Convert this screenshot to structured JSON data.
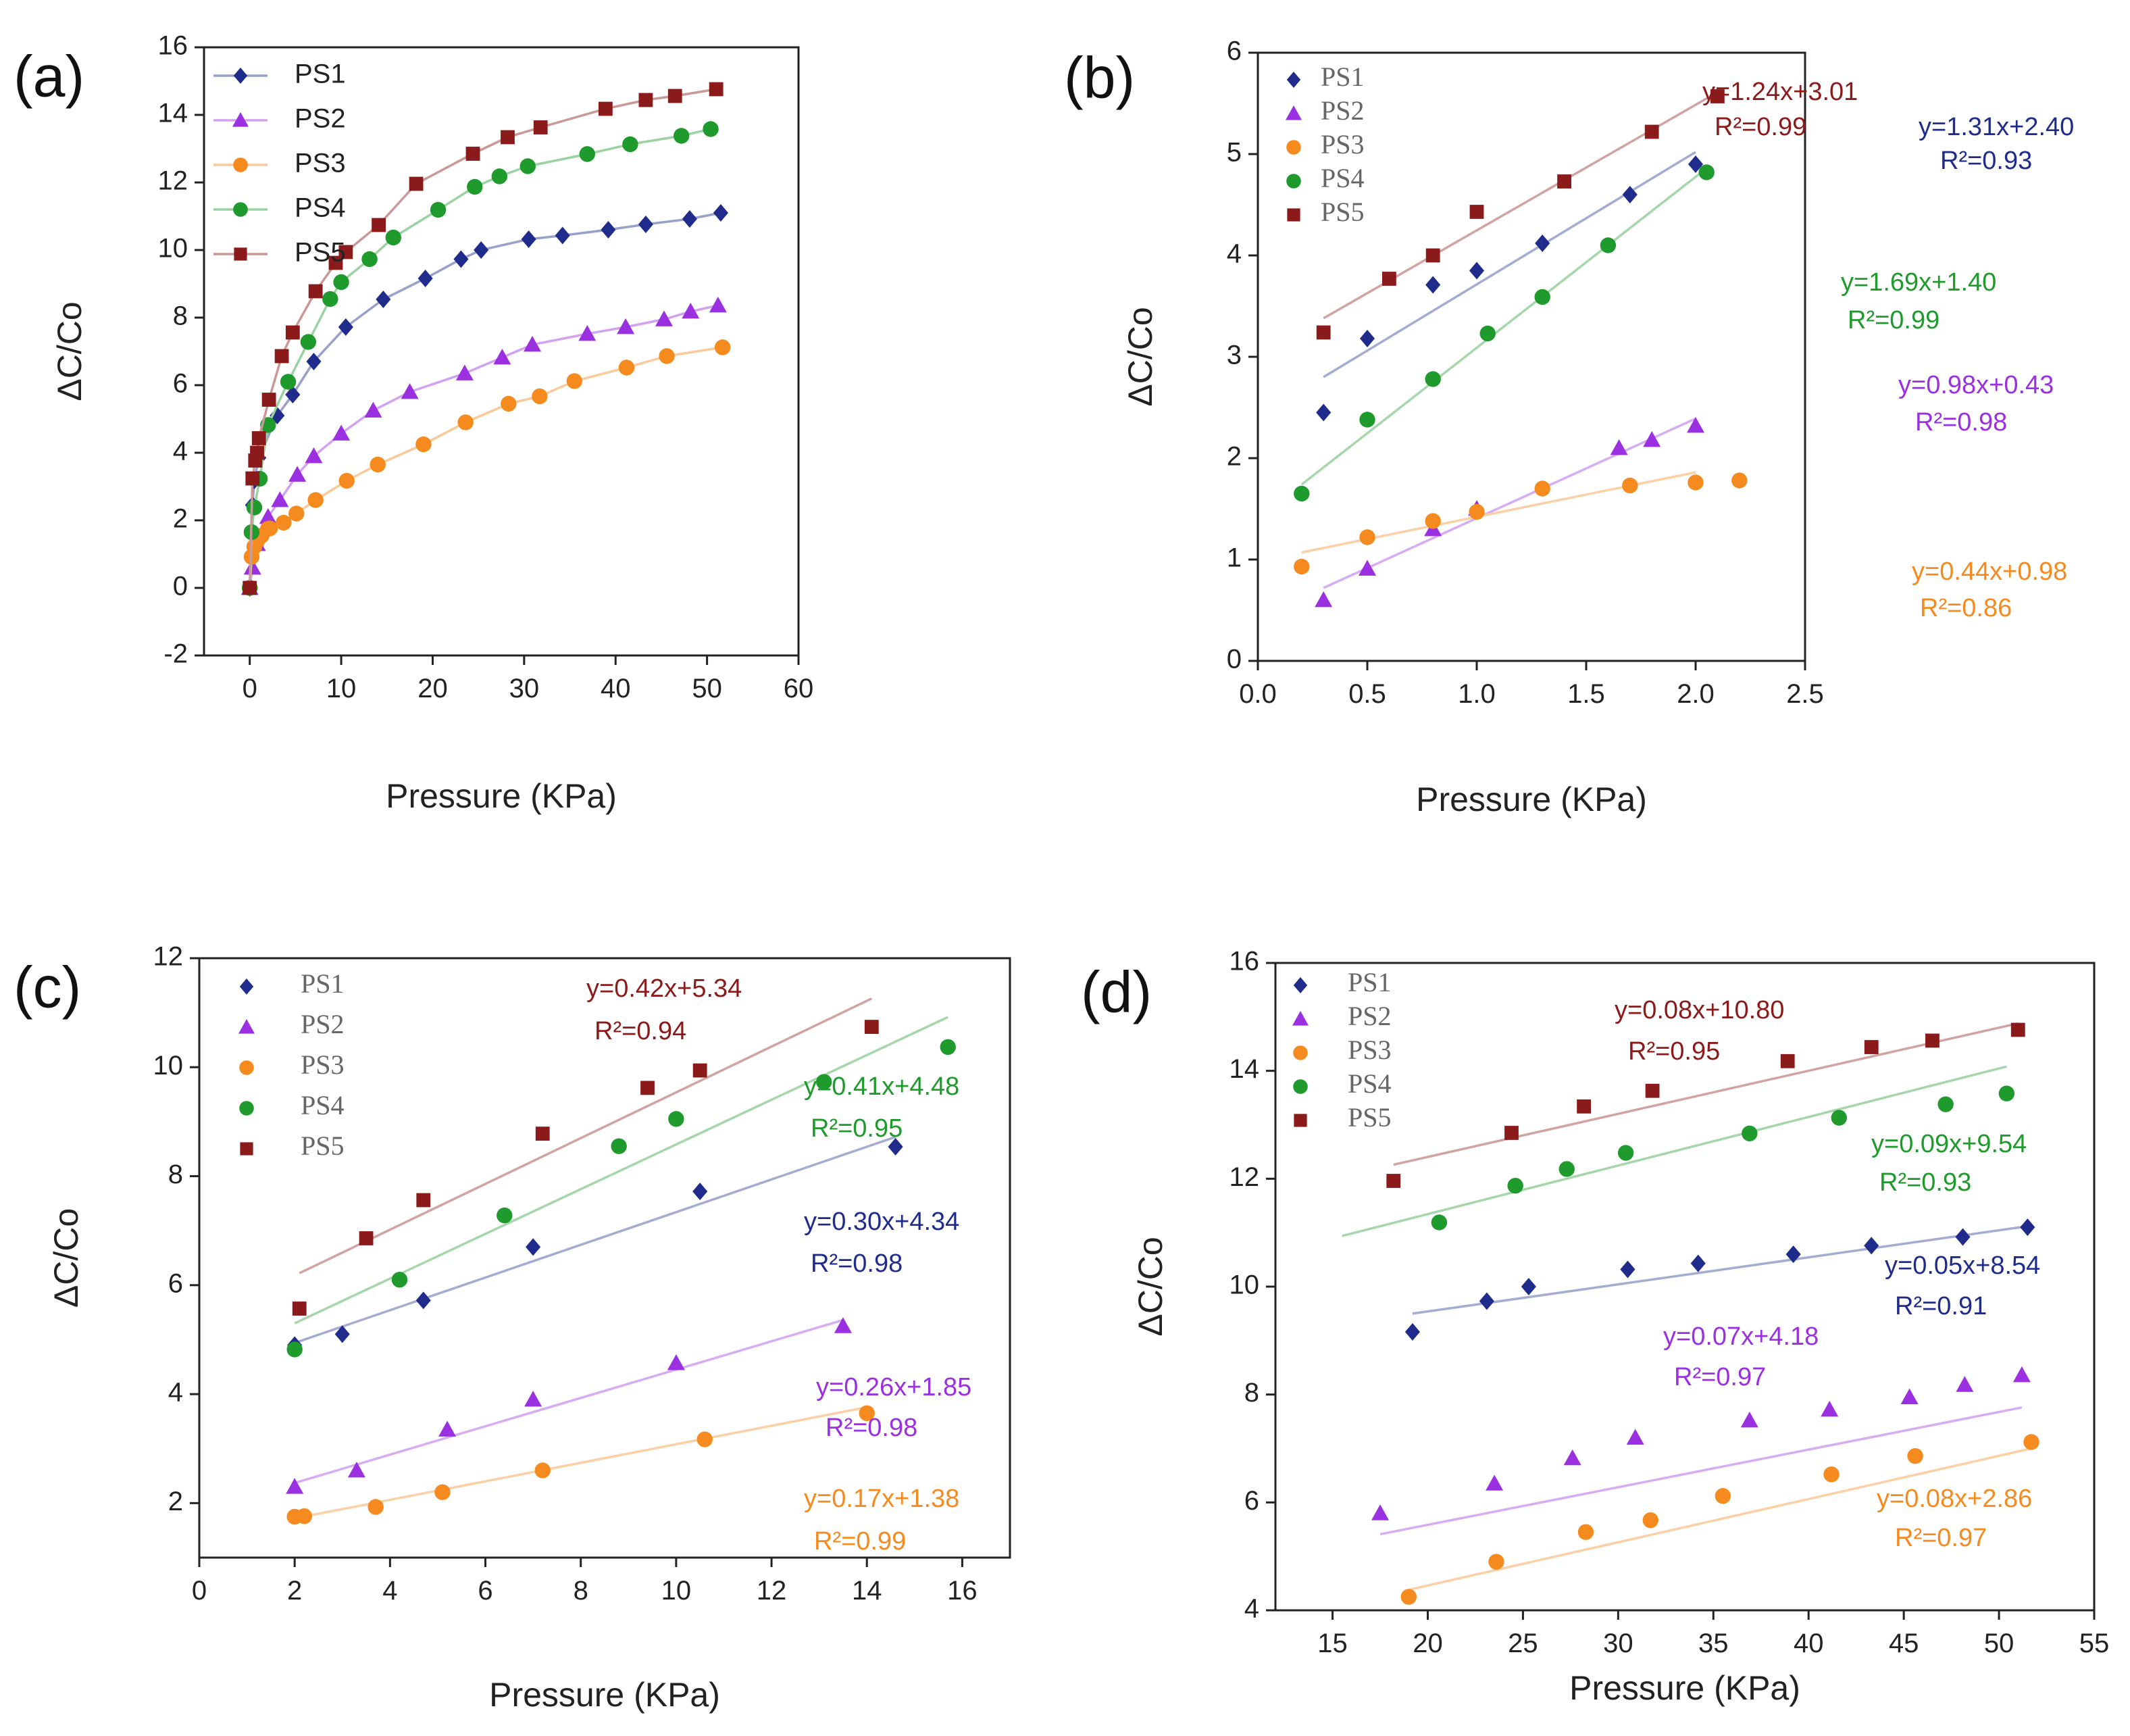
{
  "chart_data": [
    {
      "panel": "(a)",
      "type": "line",
      "xlabel": "Pressure (KPa)",
      "ylabel": "ΔC/Co",
      "xlim": [
        -5,
        60
      ],
      "ylim": [
        -2,
        16
      ],
      "xticks": [
        "0",
        "10",
        "20",
        "30",
        "40",
        "50",
        "60"
      ],
      "yticks": [
        "-2",
        "0",
        "2",
        "4",
        "6",
        "8",
        "10",
        "12",
        "14",
        "16"
      ],
      "legend_style": "sans",
      "legend_position": "top-left",
      "series": [
        {
          "name": "PS1",
          "color": "#1f2c8c",
          "marker": "diamond",
          "x": [
            0,
            0.3,
            0.5,
            1.0,
            3.0,
            4.7,
            7.0,
            10.5,
            14.6,
            19.2,
            23.1,
            25.3,
            30.5,
            34.2,
            39.2,
            43.3,
            48.1,
            51.5
          ],
          "y": [
            0,
            2.45,
            3.18,
            3.85,
            5.1,
            5.72,
            6.7,
            7.72,
            8.54,
            9.16,
            9.73,
            10.0,
            10.32,
            10.43,
            10.6,
            10.76,
            10.92,
            11.1
          ]
        },
        {
          "name": "PS2",
          "color": "#9b30e0",
          "marker": "triangle",
          "x": [
            0,
            0.3,
            0.8,
            2.0,
            3.3,
            5.2,
            7.0,
            10.0,
            13.5,
            17.5,
            23.5,
            27.6,
            30.9,
            36.9,
            41.1,
            45.3,
            48.2,
            51.2
          ],
          "y": [
            0,
            0.6,
            1.3,
            2.1,
            2.6,
            3.35,
            3.9,
            4.57,
            5.25,
            5.8,
            6.35,
            6.82,
            7.2,
            7.52,
            7.72,
            7.95,
            8.18,
            8.36
          ]
        },
        {
          "name": "PS3",
          "color": "#f58a1f",
          "marker": "circle",
          "x": [
            0,
            0.2,
            0.5,
            0.8,
            1.3,
            2.0,
            2.2,
            3.7,
            5.1,
            7.2,
            10.6,
            14.0,
            19.0,
            23.6,
            28.3,
            31.7,
            35.5,
            41.2,
            45.6,
            51.7
          ],
          "y": [
            0,
            0.92,
            1.22,
            1.38,
            1.55,
            1.75,
            1.76,
            1.93,
            2.2,
            2.6,
            3.17,
            3.65,
            4.25,
            4.9,
            5.45,
            5.67,
            6.12,
            6.52,
            6.86,
            7.12
          ]
        },
        {
          "name": "PS4",
          "color": "#1f9a2d",
          "marker": "circle",
          "x": [
            0,
            0.2,
            0.5,
            1.1,
            2.0,
            4.2,
            6.4,
            8.8,
            10.0,
            13.1,
            15.7,
            20.6,
            24.6,
            27.3,
            30.4,
            36.9,
            41.6,
            47.2,
            50.4
          ],
          "y": [
            0,
            1.65,
            2.38,
            3.23,
            4.82,
            6.1,
            7.28,
            8.55,
            9.05,
            9.73,
            10.37,
            11.19,
            11.87,
            12.18,
            12.48,
            12.84,
            13.13,
            13.38,
            13.58
          ]
        },
        {
          "name": "PS5",
          "color": "#8b1a1a",
          "marker": "square",
          "x": [
            0,
            0.3,
            0.6,
            0.8,
            1.0,
            2.1,
            3.5,
            4.7,
            7.2,
            9.4,
            10.5,
            14.1,
            18.2,
            24.4,
            28.2,
            31.8,
            38.9,
            43.3,
            46.5,
            51.0
          ],
          "y": [
            0,
            3.24,
            3.77,
            4.0,
            4.43,
            5.57,
            6.86,
            7.56,
            8.78,
            9.62,
            9.94,
            10.74,
            11.96,
            12.85,
            13.34,
            13.63,
            14.18,
            14.44,
            14.56,
            14.76
          ]
        }
      ]
    },
    {
      "panel": "(b)",
      "type": "scatter",
      "xlabel": "Pressure (KPa)",
      "ylabel": "ΔC/Co",
      "xlim": [
        0,
        2.5
      ],
      "ylim": [
        0,
        6
      ],
      "xticks": [
        "0.0",
        "0.5",
        "1.0",
        "1.5",
        "2.0",
        "2.5"
      ],
      "yticks": [
        "0",
        "1",
        "2",
        "3",
        "4",
        "5",
        "6"
      ],
      "legend_style": "serif",
      "legend_position": "top-left",
      "series": [
        {
          "name": "PS1",
          "color": "#1f2c8c",
          "marker": "diamond",
          "x": [
            0.3,
            0.5,
            0.8,
            1.0,
            1.3,
            1.7,
            2.0
          ],
          "y": [
            2.45,
            3.18,
            3.71,
            3.85,
            4.12,
            4.6,
            4.9
          ],
          "fit": {
            "x": [
              0.3,
              2.0
            ],
            "y": [
              2.8,
              5.02
            ]
          },
          "equation": "y=1.31x+2.40",
          "r2": "R²=0.93"
        },
        {
          "name": "PS2",
          "color": "#9b30e0",
          "marker": "triangle",
          "x": [
            0.3,
            0.5,
            0.8,
            1.0,
            1.65,
            1.8,
            2.0
          ],
          "y": [
            0.6,
            0.91,
            1.3,
            1.5,
            2.1,
            2.18,
            2.32
          ],
          "fit": {
            "x": [
              0.3,
              2.0
            ],
            "y": [
              0.72,
              2.39
            ]
          },
          "equation": "y=0.98x+0.43",
          "r2": "R²=0.98"
        },
        {
          "name": "PS3",
          "color": "#f58a1f",
          "marker": "circle",
          "x": [
            0.2,
            0.5,
            0.8,
            1.0,
            1.3,
            1.7,
            2.0,
            2.2
          ],
          "y": [
            0.93,
            1.22,
            1.38,
            1.47,
            1.7,
            1.73,
            1.76,
            1.78
          ],
          "fit": {
            "x": [
              0.2,
              2.0
            ],
            "y": [
              1.07,
              1.86
            ]
          },
          "equation": "y=0.44x+0.98",
          "r2": "R²=0.86"
        },
        {
          "name": "PS4",
          "color": "#1f9a2d",
          "marker": "circle",
          "x": [
            0.2,
            0.5,
            0.8,
            1.05,
            1.3,
            1.6,
            2.05
          ],
          "y": [
            1.65,
            2.38,
            2.78,
            3.23,
            3.59,
            4.1,
            4.82
          ],
          "fit": {
            "x": [
              0.2,
              2.05
            ],
            "y": [
              1.74,
              4.86
            ]
          },
          "equation": "y=1.69x+1.40",
          "r2": "R²=0.99"
        },
        {
          "name": "PS5",
          "color": "#8b1a1a",
          "marker": "square",
          "x": [
            0.3,
            0.6,
            0.8,
            1.0,
            1.4,
            1.8,
            2.1
          ],
          "y": [
            3.24,
            3.77,
            4.0,
            4.43,
            4.73,
            5.22,
            5.57
          ],
          "fit": {
            "x": [
              0.3,
              2.1
            ],
            "y": [
              3.38,
              5.61
            ]
          },
          "equation": "y=1.24x+3.01",
          "r2": "R²=0.99"
        }
      ]
    },
    {
      "panel": "(c)",
      "type": "scatter",
      "xlabel": "Pressure (KPa)",
      "ylabel": "ΔC/Co",
      "xlim": [
        0,
        17
      ],
      "ylim": [
        1,
        12
      ],
      "xticks": [
        "0",
        "2",
        "4",
        "6",
        "8",
        "10",
        "12",
        "14",
        "16"
      ],
      "yticks": [
        "2",
        "4",
        "6",
        "8",
        "10",
        "12"
      ],
      "legend_style": "serif",
      "legend_position": "top-left",
      "series": [
        {
          "name": "PS1",
          "color": "#1f2c8c",
          "marker": "diamond",
          "x": [
            2.0,
            3.0,
            4.7,
            7.0,
            10.5,
            14.6
          ],
          "y": [
            4.9,
            5.1,
            5.72,
            6.7,
            7.72,
            8.54
          ],
          "fit": {
            "x": [
              2.0,
              14.6
            ],
            "y": [
              4.94,
              8.72
            ]
          },
          "equation": "y=0.30x+4.34",
          "r2": "R²=0.98"
        },
        {
          "name": "PS2",
          "color": "#9b30e0",
          "marker": "triangle",
          "x": [
            2.0,
            3.3,
            5.2,
            7.0,
            10.0,
            13.5
          ],
          "y": [
            2.3,
            2.6,
            3.35,
            3.9,
            4.57,
            5.25
          ],
          "fit": {
            "x": [
              2.0,
              13.5
            ],
            "y": [
              2.37,
              5.36
            ]
          },
          "equation": "y=0.26x+1.85",
          "r2": "R²=0.98"
        },
        {
          "name": "PS3",
          "color": "#f58a1f",
          "marker": "circle",
          "x": [
            2.0,
            2.2,
            3.7,
            5.1,
            7.2,
            10.6,
            14.0
          ],
          "y": [
            1.75,
            1.76,
            1.93,
            2.2,
            2.6,
            3.17,
            3.65
          ],
          "fit": {
            "x": [
              2.0,
              14.0
            ],
            "y": [
              1.72,
              3.76
            ]
          },
          "equation": "y=0.17x+1.38",
          "r2": "R²=0.99"
        },
        {
          "name": "PS4",
          "color": "#1f9a2d",
          "marker": "circle",
          "x": [
            2.0,
            4.2,
            6.4,
            8.8,
            10.0,
            13.1,
            15.7
          ],
          "y": [
            4.82,
            6.1,
            7.28,
            8.55,
            9.05,
            9.73,
            10.37
          ],
          "fit": {
            "x": [
              2.0,
              15.7
            ],
            "y": [
              5.3,
              10.92
            ]
          },
          "equation": "y=0.41x+4.48",
          "r2": "R²=0.95"
        },
        {
          "name": "PS5",
          "color": "#8b1a1a",
          "marker": "square",
          "x": [
            2.1,
            3.5,
            4.7,
            7.2,
            9.4,
            10.5,
            14.1
          ],
          "y": [
            5.57,
            6.86,
            7.56,
            8.78,
            9.62,
            9.94,
            10.74
          ],
          "fit": {
            "x": [
              2.1,
              14.1
            ],
            "y": [
              6.22,
              11.26
            ]
          },
          "equation": "y=0.42x+5.34",
          "r2": "R²=0.94"
        }
      ]
    },
    {
      "panel": "(d)",
      "type": "scatter",
      "xlabel": "Pressure (KPa)",
      "ylabel": "ΔC/Co",
      "xlim": [
        12,
        55
      ],
      "ylim": [
        4,
        16
      ],
      "xticks": [
        "15",
        "20",
        "25",
        "30",
        "35",
        "40",
        "45",
        "50",
        "55"
      ],
      "yticks": [
        "4",
        "6",
        "8",
        "10",
        "12",
        "14",
        "16"
      ],
      "legend_style": "serif",
      "legend_position": "top-left",
      "series": [
        {
          "name": "PS1",
          "color": "#1f2c8c",
          "marker": "diamond",
          "x": [
            19.2,
            23.1,
            25.3,
            30.5,
            34.2,
            39.2,
            43.3,
            48.1,
            51.5
          ],
          "y": [
            9.16,
            9.73,
            10.0,
            10.32,
            10.43,
            10.6,
            10.76,
            10.92,
            11.1
          ],
          "fit": {
            "x": [
              19.2,
              51.5
            ],
            "y": [
              9.5,
              11.12
            ]
          },
          "equation": "y=0.05x+8.54",
          "r2": "R²=0.91"
        },
        {
          "name": "PS2",
          "color": "#9b30e0",
          "marker": "triangle",
          "x": [
            17.5,
            23.5,
            27.6,
            30.9,
            36.9,
            41.1,
            45.3,
            48.2,
            51.2
          ],
          "y": [
            5.8,
            6.35,
            6.82,
            7.2,
            7.52,
            7.72,
            7.95,
            8.18,
            8.36
          ],
          "fit": {
            "x": [
              17.5,
              51.2
            ],
            "y": [
              5.41,
              7.76
            ]
          },
          "equation": "y=0.07x+4.18",
          "r2": "R²=0.97"
        },
        {
          "name": "PS3",
          "color": "#f58a1f",
          "marker": "circle",
          "x": [
            19.0,
            23.6,
            28.3,
            31.7,
            35.5,
            41.2,
            45.6,
            51.7
          ],
          "y": [
            4.25,
            4.9,
            5.45,
            5.67,
            6.12,
            6.52,
            6.86,
            7.12
          ],
          "fit": {
            "x": [
              19.0,
              51.7
            ],
            "y": [
              4.38,
              7.0
            ]
          },
          "equation": "y=0.08x+2.86",
          "r2": "R²=0.97"
        },
        {
          "name": "PS4",
          "color": "#1f9a2d",
          "marker": "circle",
          "x": [
            20.6,
            24.6,
            27.3,
            30.4,
            36.9,
            41.6,
            47.2,
            50.4
          ],
          "y": [
            11.19,
            11.87,
            12.18,
            12.48,
            12.84,
            13.13,
            13.38,
            13.58
          ],
          "fit": {
            "x": [
              15.5,
              50.4
            ],
            "y": [
              10.94,
              14.08
            ]
          },
          "equation": "y=0.09x+9.54",
          "r2": "R²=0.93"
        },
        {
          "name": "PS5",
          "color": "#8b1a1a",
          "marker": "square",
          "x": [
            18.2,
            24.4,
            28.2,
            31.8,
            38.9,
            43.3,
            46.5,
            51.0
          ],
          "y": [
            11.96,
            12.85,
            13.34,
            13.63,
            14.18,
            14.44,
            14.56,
            14.76
          ],
          "fit": {
            "x": [
              18.2,
              51.0
            ],
            "y": [
              12.26,
              14.88
            ]
          },
          "equation": "y=0.08x+10.80",
          "r2": "R²=0.95"
        }
      ]
    }
  ]
}
